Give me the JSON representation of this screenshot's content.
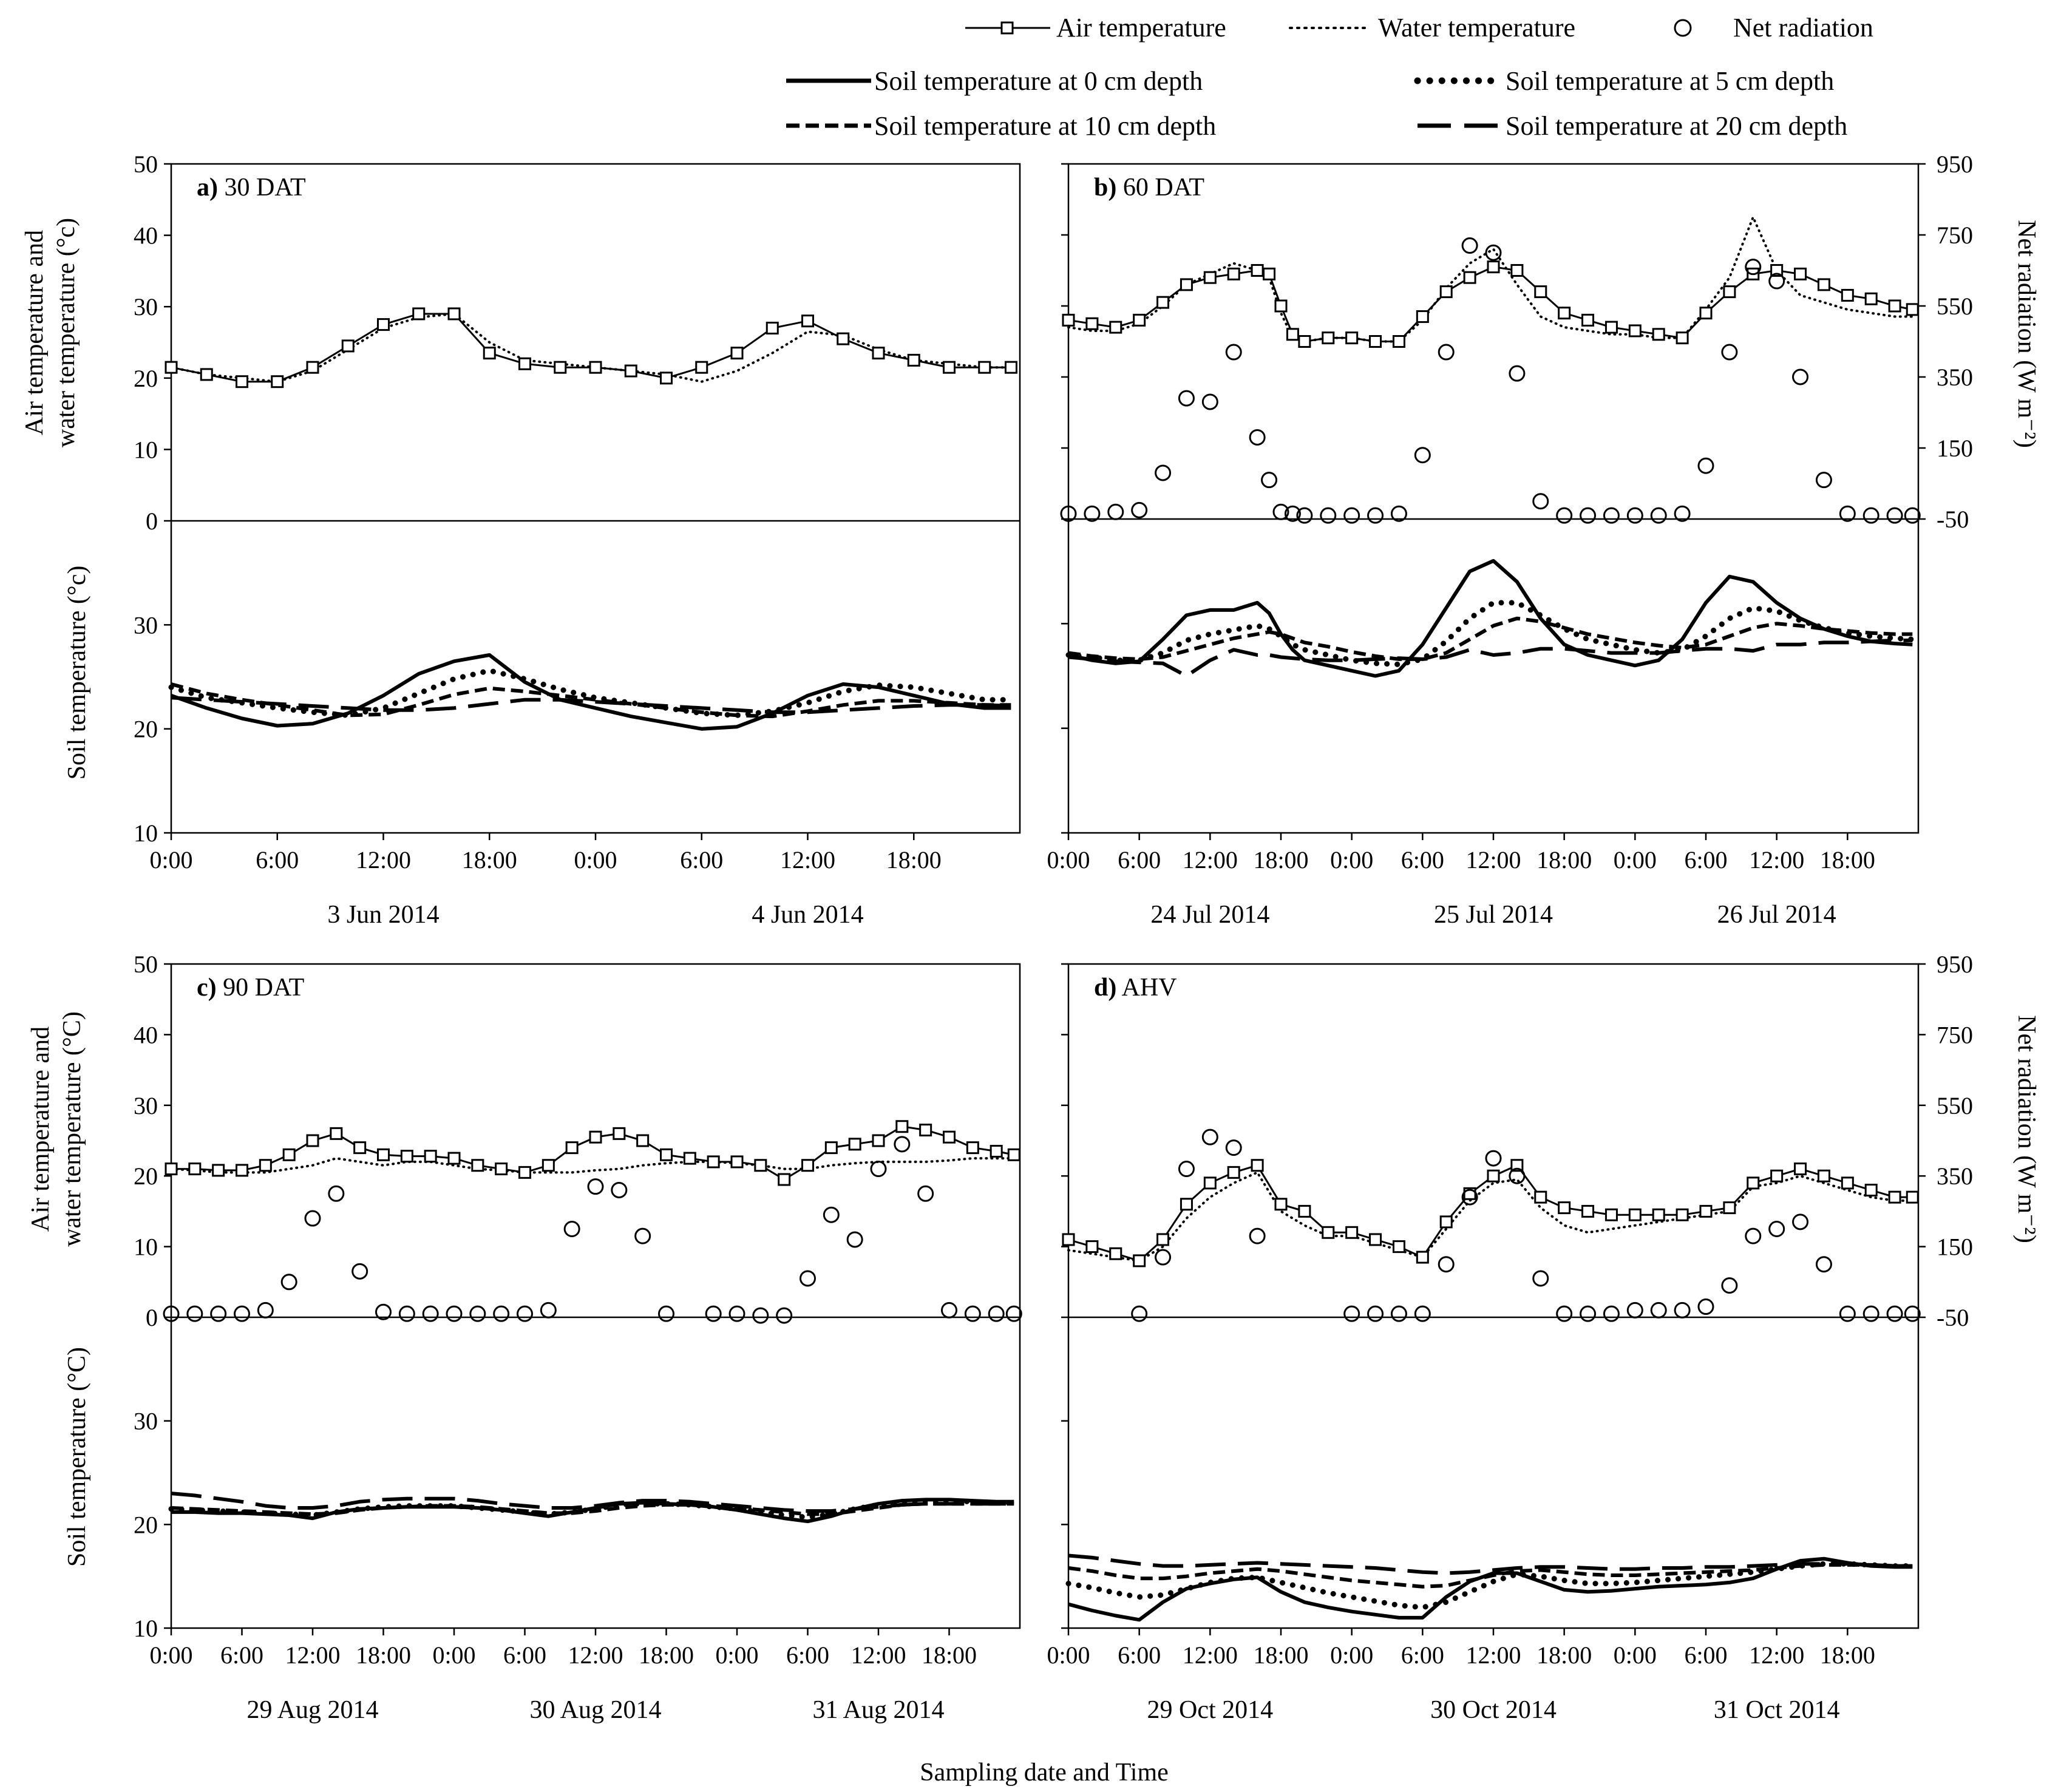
{
  "figure": {
    "xlabel": "Sampling date and Time",
    "left_ylabel_top": [
      "Air temperature and",
      "water temperature (°c)"
    ],
    "left_ylabel_bottom": "Soil temperature (°c)",
    "left_ylabel_top_c": [
      "Air temperature and",
      "water temperature (°C)"
    ],
    "left_ylabel_bottom_c": "Soil temperature (°C)",
    "right_ylabel": "Net radiation  (W m⁻²)",
    "legend": {
      "air": "Air temperature",
      "water": "Water temperature",
      "rad": "Net radiation",
      "soil0": "Soil temperature at   0 cm depth",
      "soil5": "Soil temperature at   5 cm depth",
      "soil10": "Soil temperature at 10 cm depth",
      "soil20": "Soil temperature at 20 cm depth"
    },
    "top_axis": {
      "ticks": [
        "0",
        "10",
        "20",
        "30",
        "40",
        "50"
      ],
      "range": [
        0,
        50
      ]
    },
    "bottom_axis": {
      "ticks": [
        "10",
        "20",
        "30"
      ],
      "range": [
        10,
        40
      ]
    },
    "right_axis": {
      "ticks": [
        "-50",
        "150",
        "350",
        "550",
        "750",
        "950"
      ],
      "range": [
        -50,
        950
      ]
    },
    "time_ticks": [
      "0:00",
      "6:00",
      "12:00",
      "18:00"
    ]
  },
  "chart_data": [
    {
      "type": "line",
      "title_bold": "a)",
      "title_rest": " 30 DAT",
      "days": [
        "3 Jun 2014",
        "4 Jun 2014"
      ],
      "hours": [
        0,
        2,
        4,
        6,
        8,
        10,
        12,
        14,
        16,
        18,
        20,
        22,
        24,
        26,
        28,
        30,
        32,
        34,
        36,
        38,
        40,
        42,
        44,
        46,
        47.5
      ],
      "air": [
        21.5,
        20.5,
        19.5,
        19.5,
        21.5,
        24.5,
        27.5,
        29,
        29,
        23.5,
        22,
        21.5,
        21.5,
        21,
        20,
        21.5,
        23.5,
        27,
        28,
        25.5,
        23.5,
        22.5,
        21.5,
        21.5,
        21.5
      ],
      "water": [
        21.5,
        20.5,
        20,
        19.5,
        21,
        24,
        27,
        28.5,
        29,
        25,
        22.5,
        22,
        21.5,
        21,
        20.5,
        19.5,
        21,
        23.5,
        26.5,
        26,
        24,
        22.5,
        22,
        21.5,
        21.5
      ],
      "rad": [],
      "soil0": [
        23.2,
        22.0,
        21.0,
        20.3,
        20.5,
        21.5,
        23.2,
        25.3,
        26.5,
        27.1,
        24.5,
        22.8,
        22.0,
        21.2,
        20.6,
        20.0,
        20.2,
        21.5,
        23.2,
        24.3,
        24.0,
        23.2,
        22.4,
        22.0,
        22.0
      ],
      "soil5": [
        24.0,
        23.0,
        22.5,
        22.0,
        21.6,
        21.3,
        22.0,
        23.4,
        24.8,
        25.6,
        24.8,
        23.8,
        23.0,
        22.5,
        22.0,
        21.5,
        21.3,
        21.7,
        22.5,
        23.6,
        24.2,
        24.0,
        23.4,
        22.8,
        22.8
      ],
      "soil10": [
        24.3,
        23.4,
        22.8,
        22.3,
        21.8,
        21.3,
        21.4,
        22.3,
        23.3,
        23.9,
        23.6,
        23.2,
        22.8,
        22.4,
        22.0,
        21.6,
        21.3,
        21.2,
        21.7,
        22.3,
        22.7,
        22.7,
        22.5,
        22.3,
        22.3
      ],
      "soil20": [
        23.0,
        22.8,
        22.6,
        22.4,
        22.2,
        22.0,
        21.8,
        21.8,
        22.0,
        22.4,
        22.8,
        22.8,
        22.6,
        22.4,
        22.2,
        22.0,
        21.8,
        21.6,
        21.6,
        21.8,
        22.0,
        22.2,
        22.3,
        22.3,
        22.2
      ],
      "soil_range": [
        10,
        40
      ]
    },
    {
      "type": "line",
      "title_bold": "b)",
      "title_rest": " 60 DAT",
      "days": [
        "24 Jul 2014",
        "25 Jul 2014",
        "26 Jul 2014"
      ],
      "hours": [
        0,
        2,
        4,
        6,
        8,
        10,
        12,
        14,
        16,
        17,
        18,
        19,
        20,
        22,
        24,
        26,
        28,
        30,
        32,
        34,
        36,
        38,
        40,
        42,
        44,
        46,
        48,
        50,
        52,
        54,
        56,
        58,
        60,
        62,
        64,
        66,
        68,
        70,
        71.5
      ],
      "air": [
        28,
        27.5,
        27,
        28,
        30.5,
        33,
        34,
        34.5,
        35,
        34.5,
        30,
        26,
        25,
        25.5,
        25.5,
        25,
        25,
        28.5,
        32,
        34,
        35.5,
        35,
        32,
        29,
        28,
        27,
        26.5,
        26,
        25.5,
        29,
        32,
        34.5,
        35,
        34.5,
        33,
        31.5,
        31,
        30,
        29.5
      ],
      "water": [
        27,
        26.5,
        26.5,
        27.5,
        30,
        33,
        34.5,
        36,
        35,
        34,
        29,
        25.5,
        25,
        25.5,
        25.5,
        25,
        25,
        28,
        32.5,
        36,
        38,
        33,
        28.5,
        27,
        26.5,
        26,
        26,
        25.5,
        25.5,
        29.5,
        34,
        42.5,
        35,
        31.5,
        30.5,
        29.5,
        29,
        28.5,
        28.5
      ],
      "rad": [
        -35,
        -35,
        -30,
        -25,
        80,
        290,
        280,
        420,
        180,
        60,
        -30,
        -35,
        -40,
        -40,
        -40,
        -40,
        -35,
        130,
        420,
        720,
        700,
        360,
        0,
        -40,
        -40,
        -40,
        -40,
        -40,
        -35,
        100,
        420,
        660,
        620,
        350,
        60,
        -35,
        -40,
        -40,
        -40
      ],
      "soil0": [
        27.0,
        26.5,
        26.2,
        26.4,
        28.5,
        30.8,
        31.3,
        31.3,
        32.0,
        31.0,
        29.0,
        27.5,
        26.5,
        26.0,
        25.5,
        25.0,
        25.5,
        28.0,
        31.5,
        35.0,
        36.0,
        34.0,
        30.5,
        28.0,
        27.0,
        26.5,
        26.0,
        26.5,
        28.5,
        32.0,
        34.5,
        34.0,
        32.0,
        30.5,
        29.5,
        28.8,
        28.3,
        28.1,
        28.0
      ],
      "soil5": [
        27.0,
        26.8,
        26.5,
        26.5,
        27.2,
        28.4,
        29.0,
        29.4,
        29.8,
        29.5,
        28.8,
        28.0,
        27.5,
        27.0,
        26.5,
        26.2,
        26.1,
        26.6,
        28.3,
        30.5,
        32.0,
        32.0,
        30.8,
        29.5,
        28.5,
        28.0,
        27.5,
        27.2,
        27.5,
        28.8,
        30.5,
        31.5,
        31.2,
        30.3,
        29.6,
        29.1,
        28.8,
        28.6,
        28.5
      ],
      "soil10": [
        27.2,
        26.9,
        26.7,
        26.6,
        26.8,
        27.4,
        28.0,
        28.6,
        29.0,
        29.2,
        29.0,
        28.6,
        28.2,
        27.8,
        27.3,
        26.9,
        26.6,
        26.6,
        27.2,
        28.5,
        29.8,
        30.5,
        30.2,
        29.6,
        29.0,
        28.6,
        28.2,
        27.9,
        27.7,
        28.0,
        28.8,
        29.6,
        30.0,
        29.8,
        29.5,
        29.3,
        29.1,
        29.0,
        29.0
      ],
      "soil20": [
        26.8,
        26.6,
        26.4,
        26.3,
        26.2,
        25.0,
        26.5,
        27.5,
        27.0,
        27.0,
        26.8,
        26.7,
        26.6,
        26.5,
        26.5,
        26.6,
        26.7,
        26.6,
        26.8,
        27.5,
        27.0,
        27.2,
        27.6,
        27.6,
        27.4,
        27.2,
        27.2,
        27.2,
        27.4,
        27.6,
        27.6,
        27.4,
        28.0,
        28.0,
        28.2,
        28.2,
        28.3,
        28.4,
        28.4
      ],
      "soil_range": [
        10,
        40
      ]
    },
    {
      "type": "line",
      "title_bold": "c)",
      "title_rest": " 90 DAT",
      "days": [
        "29 Aug 2014",
        "30 Aug 2014",
        "31 Aug 2014"
      ],
      "hours": [
        0,
        2,
        4,
        6,
        8,
        10,
        12,
        14,
        16,
        18,
        20,
        22,
        24,
        26,
        28,
        30,
        32,
        34,
        36,
        38,
        40,
        42,
        44,
        46,
        48,
        50,
        52,
        54,
        56,
        58,
        60,
        62,
        64,
        66,
        68,
        70,
        71.5
      ],
      "air": [
        21,
        21,
        20.8,
        20.8,
        21.5,
        23,
        25,
        26,
        24,
        23,
        22.8,
        22.8,
        22.5,
        21.5,
        21,
        20.5,
        21.5,
        24,
        25.5,
        26,
        25,
        23,
        22.5,
        22,
        22,
        21.5,
        19.5,
        21.5,
        24,
        24.5,
        25,
        27,
        26.5,
        25.5,
        24,
        23.5,
        23
      ],
      "water": [
        21,
        20.8,
        20.5,
        20.5,
        20.5,
        21,
        21.5,
        22.5,
        22,
        21.5,
        22,
        22,
        21.5,
        21,
        20.8,
        20.5,
        20.5,
        20.5,
        20.8,
        21,
        21.5,
        21.8,
        22,
        22,
        21.8,
        21.5,
        21,
        21,
        21.5,
        21.8,
        22,
        22,
        22,
        22.2,
        22.5,
        22.5,
        22.5
      ],
      "rad": [
        -40,
        -40,
        -40,
        -40,
        -30,
        50,
        230,
        300,
        80,
        -35,
        -40,
        -40,
        -40,
        -40,
        -40,
        -40,
        -30,
        200,
        320,
        310,
        180,
        -40,
        null,
        -40,
        -40,
        -45,
        -45,
        60,
        240,
        170,
        370,
        440,
        300,
        -30,
        -40,
        -40,
        -40
      ],
      "soil0": [
        21.2,
        21.2,
        21.1,
        21.1,
        21.0,
        20.9,
        20.6,
        21.2,
        21.5,
        21.6,
        21.7,
        21.7,
        21.7,
        21.6,
        21.4,
        21.1,
        20.8,
        21.2,
        21.6,
        22.0,
        22.1,
        22.0,
        21.9,
        21.7,
        21.4,
        21.0,
        20.6,
        20.3,
        20.8,
        21.5,
        22.0,
        22.3,
        22.4,
        22.4,
        22.3,
        22.2,
        22.2
      ],
      "soil5": [
        21.5,
        21.4,
        21.3,
        21.2,
        21.1,
        21.0,
        20.9,
        21.2,
        21.5,
        21.7,
        21.8,
        21.8,
        21.8,
        21.6,
        21.4,
        21.2,
        21.0,
        21.2,
        21.5,
        21.9,
        22.0,
        22.0,
        21.9,
        21.7,
        21.5,
        21.2,
        20.9,
        20.7,
        21.0,
        21.5,
        21.9,
        22.2,
        22.3,
        22.3,
        22.2,
        22.1,
        22.1
      ],
      "soil10": [
        21.6,
        21.5,
        21.4,
        21.3,
        21.2,
        21.1,
        21.0,
        21.1,
        21.4,
        21.6,
        21.7,
        21.8,
        21.8,
        21.7,
        21.5,
        21.3,
        21.1,
        21.1,
        21.3,
        21.6,
        21.8,
        21.9,
        21.9,
        21.8,
        21.6,
        21.4,
        21.2,
        21.0,
        21.0,
        21.3,
        21.6,
        21.9,
        22.0,
        22.0,
        22.0,
        22.0,
        22.0
      ],
      "soil20": [
        23.0,
        22.8,
        22.5,
        22.2,
        21.8,
        21.6,
        21.6,
        21.8,
        22.2,
        22.4,
        22.5,
        22.5,
        22.5,
        22.3,
        22.0,
        21.8,
        21.6,
        21.6,
        21.8,
        22.1,
        22.3,
        22.3,
        22.2,
        22.0,
        21.8,
        21.6,
        21.4,
        21.3,
        21.3,
        21.5,
        21.7,
        21.9,
        22.0,
        22.0,
        22.0,
        22.0,
        22.0
      ],
      "soil_range": [
        10,
        40
      ]
    },
    {
      "type": "line",
      "title_bold": "d)",
      "title_rest": " AHV",
      "days": [
        "29 Oct 2014",
        "30 Oct 2014",
        "31 Oct 2014"
      ],
      "hours": [
        0,
        2,
        4,
        6,
        8,
        10,
        12,
        14,
        16,
        18,
        20,
        22,
        24,
        26,
        28,
        30,
        32,
        34,
        36,
        38,
        40,
        42,
        44,
        46,
        48,
        50,
        52,
        54,
        56,
        58,
        60,
        62,
        64,
        66,
        68,
        70,
        71.5
      ],
      "air": [
        11,
        10,
        9,
        8,
        11,
        16,
        19,
        20.5,
        21.5,
        16,
        15,
        12,
        12,
        11,
        10,
        8.5,
        13.5,
        17.5,
        20,
        21.5,
        17,
        15.5,
        15,
        14.5,
        14.5,
        14.5,
        14.5,
        15,
        15.5,
        19,
        20,
        21,
        20,
        19,
        18,
        17,
        17
      ],
      "water": [
        9.5,
        9,
        8.5,
        8,
        10,
        14,
        17,
        19,
        20.5,
        15,
        13,
        11.5,
        11.5,
        10.5,
        9.5,
        8.5,
        12.5,
        16.5,
        19,
        19.5,
        15.5,
        13,
        12,
        12.5,
        13,
        13.5,
        14,
        14.5,
        15,
        18.5,
        19,
        20,
        19,
        18,
        17,
        16.5,
        16.5
      ],
      "rad": [
        null,
        null,
        null,
        -40,
        120,
        370,
        460,
        430,
        180,
        null,
        null,
        null,
        -40,
        -40,
        -40,
        -40,
        100,
        290,
        400,
        350,
        60,
        -40,
        -40,
        -40,
        -30,
        -30,
        -30,
        -20,
        40,
        180,
        200,
        220,
        100,
        -40,
        -40,
        -40,
        -40
      ],
      "soil0": [
        12.3,
        11.7,
        11.2,
        10.8,
        12.5,
        13.8,
        14.3,
        14.7,
        14.9,
        13.5,
        12.5,
        12.0,
        11.6,
        11.3,
        11.0,
        11.0,
        13.0,
        14.5,
        15.3,
        15.3,
        14.5,
        13.7,
        13.5,
        13.6,
        13.8,
        14.0,
        14.1,
        14.2,
        14.4,
        14.8,
        15.7,
        16.5,
        16.7,
        16.3,
        16.0,
        15.9,
        15.9
      ],
      "soil5": [
        14.3,
        13.9,
        13.4,
        13.0,
        13.2,
        13.8,
        14.4,
        14.8,
        14.9,
        14.4,
        13.9,
        13.4,
        13.0,
        12.6,
        12.2,
        12.0,
        12.5,
        13.5,
        14.5,
        15.2,
        15.0,
        14.6,
        14.3,
        14.3,
        14.4,
        14.6,
        14.8,
        15.0,
        15.2,
        15.4,
        15.7,
        16.0,
        16.2,
        16.2,
        16.1,
        16.0,
        16.0
      ],
      "soil10": [
        15.8,
        15.5,
        15.1,
        14.8,
        14.8,
        15.0,
        15.3,
        15.5,
        15.7,
        15.5,
        15.2,
        14.9,
        14.6,
        14.4,
        14.2,
        14.0,
        14.1,
        14.6,
        15.1,
        15.5,
        15.6,
        15.4,
        15.2,
        15.1,
        15.1,
        15.2,
        15.3,
        15.4,
        15.5,
        15.6,
        15.8,
        16.0,
        16.1,
        16.1,
        16.1,
        16.0,
        16.0
      ],
      "soil20": [
        17.0,
        16.8,
        16.5,
        16.2,
        16.0,
        16.0,
        16.1,
        16.2,
        16.3,
        16.2,
        16.1,
        16.0,
        15.9,
        15.8,
        15.6,
        15.4,
        15.3,
        15.4,
        15.6,
        15.8,
        15.9,
        15.9,
        15.8,
        15.7,
        15.7,
        15.8,
        15.8,
        15.9,
        15.9,
        16.0,
        16.1,
        16.2,
        16.2,
        16.2,
        16.1,
        16.0,
        16.0
      ],
      "soil_range": [
        10,
        40
      ]
    }
  ]
}
